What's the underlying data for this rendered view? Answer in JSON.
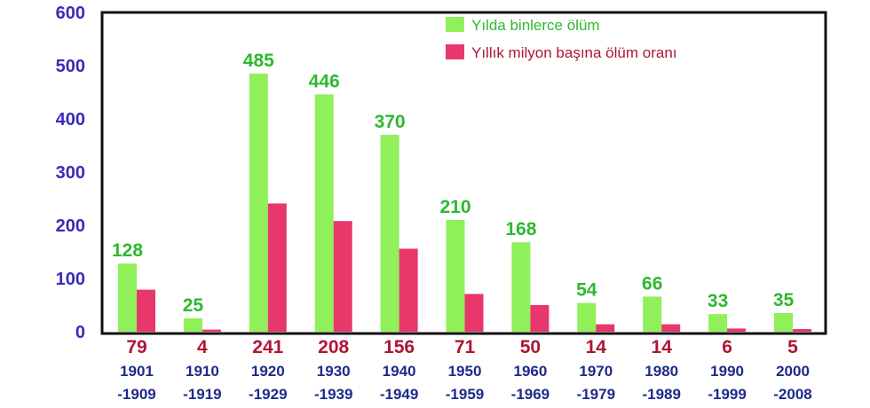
{
  "chart_data": {
    "type": "bar",
    "categories": [
      [
        "1901",
        "-1909"
      ],
      [
        "1910",
        "-1919"
      ],
      [
        "1920",
        "-1929"
      ],
      [
        "1930",
        "-1939"
      ],
      [
        "1940",
        "-1949"
      ],
      [
        "1950",
        "-1959"
      ],
      [
        "1960",
        "-1969"
      ],
      [
        "1970",
        "-1979"
      ],
      [
        "1980",
        "-1989"
      ],
      [
        "1990",
        "-1999"
      ],
      [
        "2000",
        "-2008"
      ]
    ],
    "series": [
      {
        "name": "Yılda binlerce ölüm",
        "color": "#8ff05a",
        "label_color": "#2fb82f",
        "values": [
          128,
          25,
          485,
          446,
          370,
          210,
          168,
          54,
          66,
          33,
          35
        ]
      },
      {
        "name": "Yıllık milyon başına ölüm oranı",
        "color": "#e8376a",
        "label_color": "#b01535",
        "values": [
          79,
          4,
          241,
          208,
          156,
          71,
          50,
          14,
          14,
          6,
          5
        ]
      }
    ],
    "yticks": [
      0,
      100,
      200,
      300,
      400,
      500,
      600
    ],
    "ylim": [
      0,
      600
    ],
    "legend_position": "top-right",
    "tick_color": "#3a2bb8",
    "category_color": "#1e2a8a"
  }
}
